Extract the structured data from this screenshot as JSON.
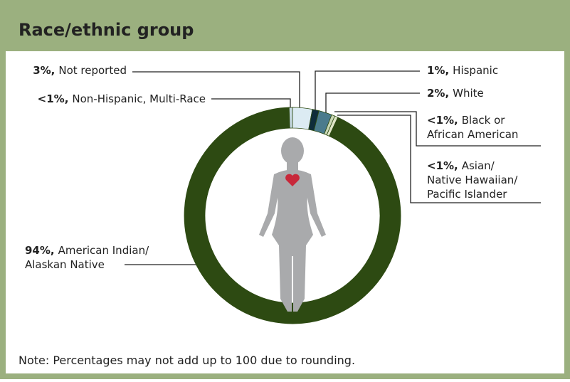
{
  "chart_data": {
    "type": "donut",
    "title": "Race/ethnic group",
    "note": "Note: Percentages may not add up to 100 due to rounding.",
    "categories": [
      [
        "Not reported"
      ],
      [
        "Hispanic"
      ],
      [
        "White"
      ],
      [
        "Black or",
        "African American"
      ],
      [
        "Asian/",
        "Native Hawaiian/",
        "Pacific Islander"
      ],
      [
        "American Indian/",
        "Alaskan Native"
      ],
      [
        "Non-Hispanic, Multi-Race"
      ]
    ],
    "values": [
      3,
      1,
      2,
      0.5,
      0.5,
      94,
      0.5
    ],
    "value_labels": [
      "3%,",
      "1%,",
      "2%,",
      "<1%,",
      "<1%,",
      "94%,",
      "<1%,"
    ],
    "colors": [
      "#dcebf3",
      "#0f2c3b",
      "#4b7b8d",
      "#c9d7b4",
      "#dfe6c8",
      "#2d4a12",
      "#c6d8e2"
    ]
  }
}
